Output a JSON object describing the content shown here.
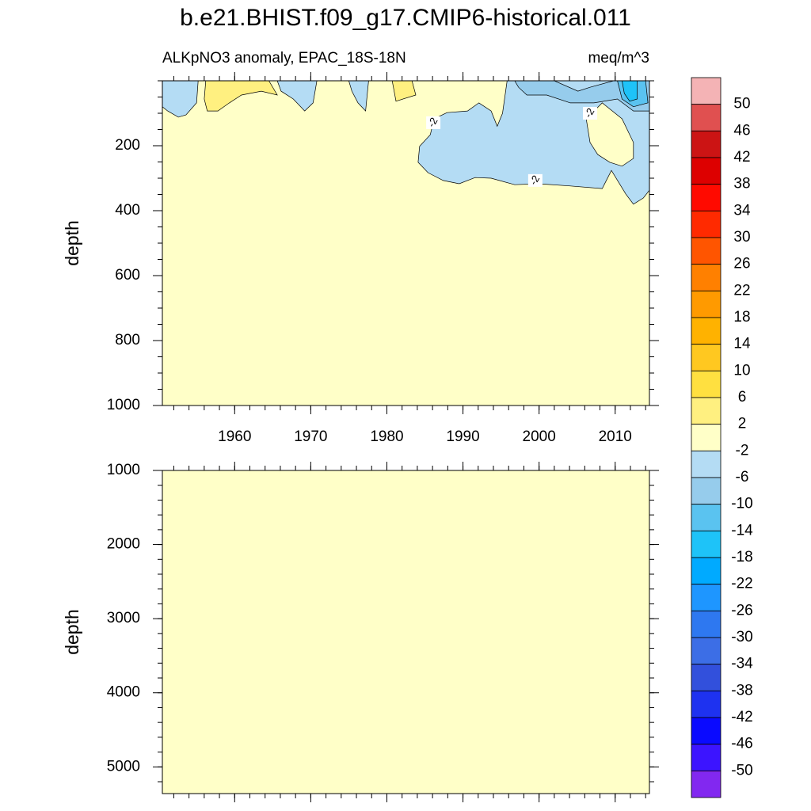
{
  "title": "b.e21.BHIST.f09_g17.CMIP6-historical.011",
  "colorbar": {
    "levels": [
      50,
      46,
      42,
      38,
      34,
      30,
      26,
      22,
      18,
      14,
      10,
      6,
      2,
      -2,
      -6,
      -10,
      -14,
      -18,
      -22,
      -26,
      -30,
      -34,
      -38,
      -42,
      -46,
      -50
    ],
    "colors": [
      "#f4b3b5",
      "#e05050",
      "#cc1414",
      "#dd0000",
      "#ff0a00",
      "#ff2a00",
      "#ff5500",
      "#ff8000",
      "#ff9a00",
      "#ffb200",
      "#ffc820",
      "#ffe040",
      "#fff080",
      "#ffffc8",
      "#b4dcf4",
      "#96ccec",
      "#5ac3f0",
      "#1ec3f8",
      "#00aaff",
      "#1e96ff",
      "#2e78f0",
      "#3c6ee6",
      "#3250dc",
      "#1e32f0",
      "#0a0aff",
      "#3c14ff",
      "#8228f0"
    ]
  },
  "chart_data": [
    {
      "type": "contour",
      "subtitle_left": "ALKpNO3 anomaly, EPAC_18S-18N",
      "subtitle_right": "meq/m^3",
      "ylabel": "depth",
      "xlim": [
        1950.5,
        2014.5
      ],
      "xticks": [
        1960,
        1970,
        1980,
        1990,
        2000,
        2010
      ],
      "x_minor_step": 2,
      "xtick_labels": true,
      "ylim": [
        0,
        1000
      ],
      "y_inverted": true,
      "yticks": [
        200,
        400,
        600,
        800,
        1000
      ],
      "y_minor_step": 50,
      "background_range": [
        -2,
        2
      ],
      "regions": [
        {
          "range": [
            -6,
            -2
          ],
          "points": [
            [
              1995.8,
              0
            ],
            [
              2014.5,
              0
            ],
            [
              2014.5,
              337
            ],
            [
              2013.7,
              361
            ],
            [
              2012.4,
              380
            ],
            [
              2011.4,
              349
            ],
            [
              2009.5,
              276
            ],
            [
              2008.3,
              332
            ],
            [
              2004.1,
              324
            ],
            [
              1999.9,
              317
            ],
            [
              1996.8,
              320
            ],
            [
              1993.7,
              300
            ],
            [
              1991.6,
              298
            ],
            [
              1989.5,
              317
            ],
            [
              1987.4,
              307
            ],
            [
              1985.4,
              283
            ],
            [
              1984.1,
              251
            ],
            [
              1984.3,
              202
            ],
            [
              1985.7,
              166
            ],
            [
              1986.2,
              117
            ],
            [
              1987.9,
              98
            ],
            [
              1990.6,
              93
            ],
            [
              1992.1,
              68
            ],
            [
              1993.7,
              93
            ],
            [
              1994.5,
              140
            ],
            [
              1995.2,
              100
            ]
          ]
        },
        {
          "range": [
            -2,
            2
          ],
          "points": [
            [
              2006.2,
              117
            ],
            [
              2008.3,
              68
            ],
            [
              2010.9,
              117
            ],
            [
              2012.4,
              190
            ],
            [
              2012.4,
              239
            ],
            [
              2010.9,
              263
            ],
            [
              2009.3,
              251
            ],
            [
              2007.7,
              227
            ],
            [
              2006.7,
              190
            ]
          ]
        },
        {
          "range": [
            -6,
            -2
          ],
          "points": [
            [
              1950.5,
              0
            ],
            [
              1955.2,
              0
            ],
            [
              1955,
              68
            ],
            [
              1953.6,
              105
            ],
            [
              1952.6,
              112
            ],
            [
              1951.2,
              93
            ],
            [
              1950.5,
              80
            ]
          ]
        },
        {
          "range": [
            -6,
            -2
          ],
          "points": [
            [
              1965.6,
              0
            ],
            [
              1970.8,
              0
            ],
            [
              1970.3,
              68
            ],
            [
              1969.2,
              93
            ],
            [
              1967.7,
              56
            ],
            [
              1966.1,
              32
            ]
          ]
        },
        {
          "range": [
            -6,
            -2
          ],
          "points": [
            [
              1975,
              0
            ],
            [
              1977.6,
              0
            ],
            [
              1977.2,
              93
            ],
            [
              1976.2,
              68
            ],
            [
              1975.4,
              32
            ]
          ]
        },
        {
          "range": [
            2,
            6
          ],
          "points": [
            [
              1956.2,
              0
            ],
            [
              1964.5,
              0
            ],
            [
              1965.6,
              44
            ],
            [
              1963.5,
              32
            ],
            [
              1960.9,
              44
            ],
            [
              1959.3,
              68
            ],
            [
              1957.8,
              93
            ],
            [
              1956.4,
              93
            ],
            [
              1956,
              56
            ]
          ]
        },
        {
          "range": [
            2,
            6
          ],
          "points": [
            [
              1980.7,
              0
            ],
            [
              1983.3,
              0
            ],
            [
              1983.8,
              44
            ],
            [
              1981.2,
              63
            ]
          ]
        },
        {
          "range": [
            -10,
            -6
          ],
          "points": [
            [
              1996.8,
              0
            ],
            [
              2002,
              0
            ],
            [
              2005.1,
              32
            ],
            [
              2006.7,
              20
            ],
            [
              2009.8,
              0
            ],
            [
              2014.5,
              0
            ],
            [
              2014.5,
              93
            ],
            [
              2012.4,
              93
            ],
            [
              2010.3,
              56
            ],
            [
              2007.2,
              68
            ],
            [
              2004.1,
              68
            ],
            [
              2001,
              44
            ],
            [
              1998.4,
              44
            ],
            [
              1997.3,
              20
            ]
          ]
        },
        {
          "range": [
            -14,
            -10
          ],
          "points": [
            [
              2010.3,
              0
            ],
            [
              2014,
              0
            ],
            [
              2014.3,
              68
            ],
            [
              2012.4,
              80
            ],
            [
              2010.9,
              56
            ]
          ]
        },
        {
          "range": [
            -18,
            -14
          ],
          "points": [
            [
              2010.9,
              0
            ],
            [
              2012.9,
              0
            ],
            [
              2012.9,
              56
            ],
            [
              2011.9,
              63
            ],
            [
              2011.2,
              39
            ]
          ]
        }
      ],
      "contour_labels": [
        {
          "value": -2,
          "x": 1986.1,
          "depth": 129
        },
        {
          "value": -2,
          "x": 1999.5,
          "depth": 307
        },
        {
          "value": -2,
          "x": 2006.7,
          "depth": 100
        }
      ]
    },
    {
      "type": "contour",
      "ylabel": "depth",
      "xlim": [
        1950.5,
        2014.5
      ],
      "xticks": [
        1960,
        1970,
        1980,
        1990,
        2000,
        2010
      ],
      "x_minor_step": 2,
      "xtick_labels": false,
      "ylim": [
        1000,
        5360
      ],
      "y_inverted": true,
      "yticks": [
        1000,
        2000,
        3000,
        4000,
        5000
      ],
      "y_minor_step": 200,
      "background_range": [
        -2,
        2
      ],
      "regions": [],
      "contour_labels": []
    }
  ]
}
